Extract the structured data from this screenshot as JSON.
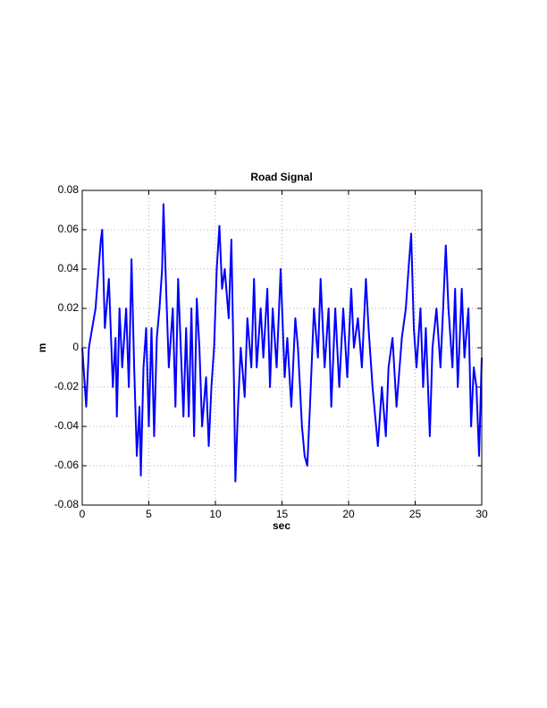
{
  "chart_data": {
    "type": "line",
    "title": "Road Signal",
    "x_label": "sec",
    "y_label": "m",
    "x": [
      0,
      0.3,
      0.5,
      1.0,
      1.4,
      1.5,
      1.7,
      2.0,
      2.3,
      2.5,
      2.6,
      2.8,
      3.0,
      3.3,
      3.5,
      3.7,
      3.9,
      4.1,
      4.3,
      4.4,
      4.6,
      4.8,
      5.0,
      5.2,
      5.4,
      5.6,
      5.8,
      6.0,
      6.1,
      6.3,
      6.5,
      6.8,
      7.0,
      7.2,
      7.4,
      7.6,
      7.8,
      8.0,
      8.2,
      8.4,
      8.6,
      8.8,
      9.0,
      9.3,
      9.5,
      9.7,
      9.9,
      10.1,
      10.3,
      10.5,
      10.7,
      11.0,
      11.2,
      11.4,
      11.5,
      11.7,
      11.9,
      12.2,
      12.4,
      12.7,
      12.9,
      13.1,
      13.4,
      13.6,
      13.9,
      14.1,
      14.3,
      14.6,
      14.9,
      15.2,
      15.4,
      15.7,
      16.0,
      16.2,
      16.5,
      16.7,
      16.9,
      17.1,
      17.4,
      17.7,
      17.9,
      18.2,
      18.5,
      18.7,
      19.0,
      19.3,
      19.6,
      19.9,
      20.2,
      20.4,
      20.7,
      21.0,
      21.3,
      21.5,
      21.8,
      22.0,
      22.2,
      22.5,
      22.8,
      23.0,
      23.3,
      23.6,
      24.0,
      24.3,
      24.5,
      24.7,
      24.9,
      25.1,
      25.4,
      25.6,
      25.8,
      26.1,
      26.3,
      26.6,
      26.9,
      27.1,
      27.3,
      27.5,
      27.8,
      28.0,
      28.2,
      28.5,
      28.7,
      29.0,
      29.2,
      29.4,
      29.6,
      29.8,
      30.0
    ],
    "series": [
      {
        "name": "Road Signal",
        "color": "#0000ff",
        "values": [
          0,
          -0.03,
          0.0,
          0.02,
          0.055,
          0.06,
          0.01,
          0.035,
          -0.02,
          0.005,
          -0.035,
          0.02,
          -0.01,
          0.02,
          -0.02,
          0.045,
          -0.01,
          -0.055,
          -0.03,
          -0.065,
          -0.01,
          0.01,
          -0.04,
          0.01,
          -0.045,
          0.005,
          0.02,
          0.04,
          0.073,
          0.03,
          -0.01,
          0.02,
          -0.03,
          0.035,
          0.0,
          -0.035,
          0.01,
          -0.035,
          0.02,
          -0.045,
          0.025,
          0.0,
          -0.04,
          -0.015,
          -0.05,
          -0.02,
          0.0,
          0.04,
          0.062,
          0.03,
          0.04,
          0.015,
          0.055,
          -0.02,
          -0.068,
          -0.03,
          0.0,
          -0.025,
          0.015,
          -0.01,
          0.035,
          -0.01,
          0.02,
          -0.005,
          0.03,
          -0.02,
          0.02,
          -0.01,
          0.04,
          -0.015,
          0.005,
          -0.03,
          0.015,
          0.0,
          -0.04,
          -0.055,
          -0.06,
          -0.03,
          0.02,
          -0.005,
          0.035,
          -0.01,
          0.02,
          -0.03,
          0.02,
          -0.02,
          0.02,
          -0.015,
          0.03,
          0.0,
          0.015,
          -0.01,
          0.035,
          0.01,
          -0.02,
          -0.035,
          -0.05,
          -0.02,
          -0.045,
          -0.01,
          0.005,
          -0.03,
          0.005,
          0.02,
          0.04,
          0.058,
          0.01,
          -0.01,
          0.02,
          -0.02,
          0.01,
          -0.045,
          0.0,
          0.02,
          -0.01,
          0.02,
          0.052,
          0.02,
          -0.01,
          0.03,
          -0.02,
          0.03,
          -0.005,
          0.02,
          -0.04,
          -0.01,
          -0.02,
          -0.055,
          -0.005
        ]
      }
    ],
    "xlim": [
      0,
      30
    ],
    "ylim": [
      -0.08,
      0.08
    ],
    "xticks": [
      0,
      5,
      10,
      15,
      20,
      25,
      30
    ],
    "yticks": [
      -0.08,
      -0.06,
      -0.04,
      -0.02,
      0,
      0.02,
      0.04,
      0.06,
      0.08
    ],
    "grid": true
  }
}
